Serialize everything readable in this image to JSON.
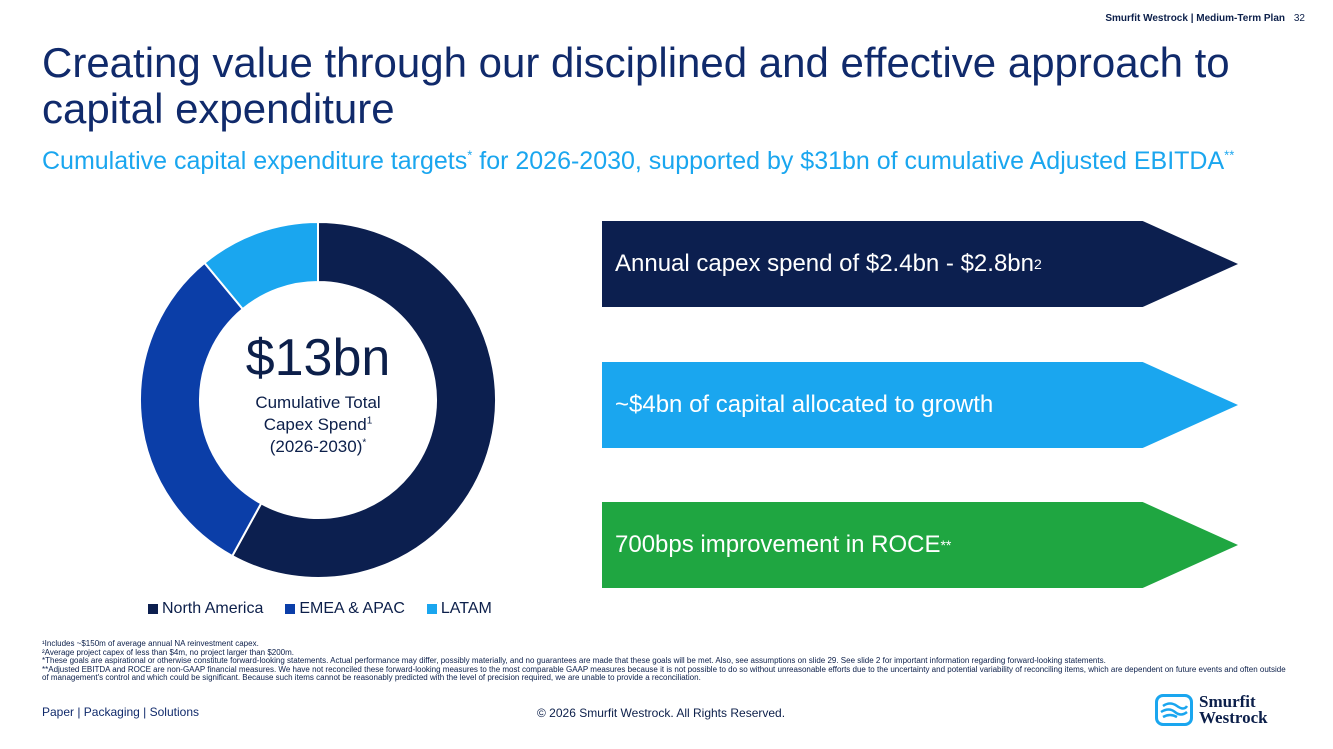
{
  "header": {
    "tag": "Smurfit Westrock | Medium-Term Plan",
    "page_number": "32"
  },
  "title": "Creating value through our disciplined and effective approach to capital expenditure",
  "subtitle": {
    "part1": "Cumulative capital expenditure targets",
    "sup1": "*",
    "part2": " for 2026-2030, supported by $31bn of cumulative Adjusted EBITDA",
    "sup2": "**"
  },
  "chart_data": {
    "type": "pie",
    "categories": [
      "North America",
      "EMEA & APAC",
      "LATAM"
    ],
    "values": [
      58,
      31,
      11
    ],
    "colors": [
      "#0c1f4f",
      "#0b3ea8",
      "#1aa6ef"
    ],
    "legend": "bottom"
  },
  "donut_center": {
    "value": "$13bn",
    "line1": "Cumulative Total",
    "line2": "Capex Spend",
    "line2_sup": "1",
    "line3": "(2026-2030)",
    "line3_sup": "*"
  },
  "legend": {
    "items": [
      {
        "label": "North America",
        "color": "#0c1f4f"
      },
      {
        "label": "EMEA & APAC",
        "color": "#0b3ea8"
      },
      {
        "label": "LATAM",
        "color": "#1aa6ef"
      }
    ]
  },
  "arrows": [
    {
      "text": "Annual capex spend of $2.4bn - $2.8bn",
      "sup": "2",
      "color": "#0c1f4f"
    },
    {
      "text": "~$4bn of capital allocated to growth",
      "sup": "",
      "color": "#1aa6ef"
    },
    {
      "text": "700bps improvement in ROCE",
      "sup": "**",
      "color": "#1fa641"
    }
  ],
  "footnotes": [
    "¹Includes ~$150m of average annual NA reinvestment capex.",
    "²Average project capex of less than $4m, no project larger than $200m.",
    "*These goals are aspirational or otherwise constitute forward-looking statements. Actual performance may differ, possibly materially, and no guarantees are made that these goals will be met. Also, see assumptions on slide 29. See slide 2 for important information regarding forward-looking statements.",
    "**Adjusted EBITDA and ROCE are non-GAAP financial measures. We have not reconciled these forward-looking measures to the most comparable GAAP measures because it is not possible to do so without unreasonable efforts due to the uncertainty and potential variability of reconciling items, which are dependent on future events and often outside of management's control and which could be significant. Because such items cannot be reasonably predicted with the level of precision required, we are unable to provide a reconciliation."
  ],
  "footer": {
    "left": "Paper  |  Packaging  |  Solutions",
    "center": "© 2026 Smurfit Westrock. All Rights Reserved.",
    "logo_line1": "Smurfit",
    "logo_line2": "Westrock"
  }
}
